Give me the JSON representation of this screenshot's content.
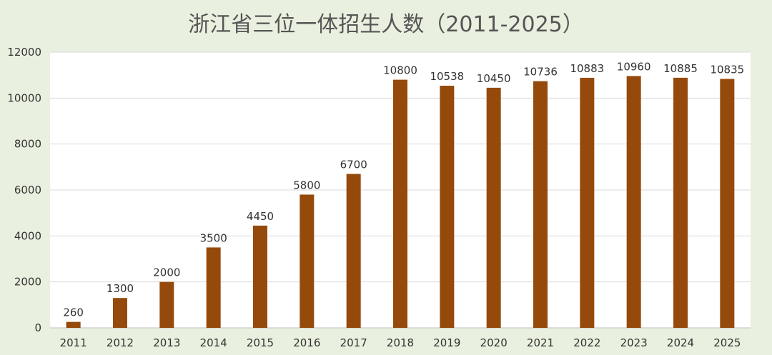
{
  "chart_data": {
    "type": "bar",
    "title": "浙江省三位一体招生人数（2011-2025）",
    "xlabel": "",
    "ylabel": "",
    "categories": [
      "2011",
      "2012",
      "2013",
      "2014",
      "2015",
      "2016",
      "2017",
      "2018",
      "2019",
      "2020",
      "2021",
      "2022",
      "2023",
      "2024",
      "2025"
    ],
    "values": [
      260,
      1300,
      2000,
      3500,
      4450,
      5800,
      6700,
      10800,
      10538,
      10450,
      10736,
      10883,
      10960,
      10885,
      10835
    ],
    "data_labels": [
      "260",
      "1300",
      "2000",
      "3500",
      "4450",
      "5800",
      "6700",
      "10800",
      "10538",
      "10450",
      "10736",
      "10883",
      "10960",
      "10885",
      "10835"
    ],
    "ylim": [
      0,
      12000
    ],
    "yticks": [
      0,
      2000,
      4000,
      6000,
      8000,
      10000,
      12000
    ],
    "ytick_labels": [
      "0",
      "2000",
      "4000",
      "6000",
      "8000",
      "10000",
      "12000"
    ],
    "grid": "horizontal",
    "legend": "none",
    "colors": {
      "bar": "#954a0c",
      "plot_background": "#ffffff",
      "page_background": "#e9f0df",
      "gridline": "#d9d9d9",
      "text": "#333333",
      "title": "#555555"
    }
  }
}
